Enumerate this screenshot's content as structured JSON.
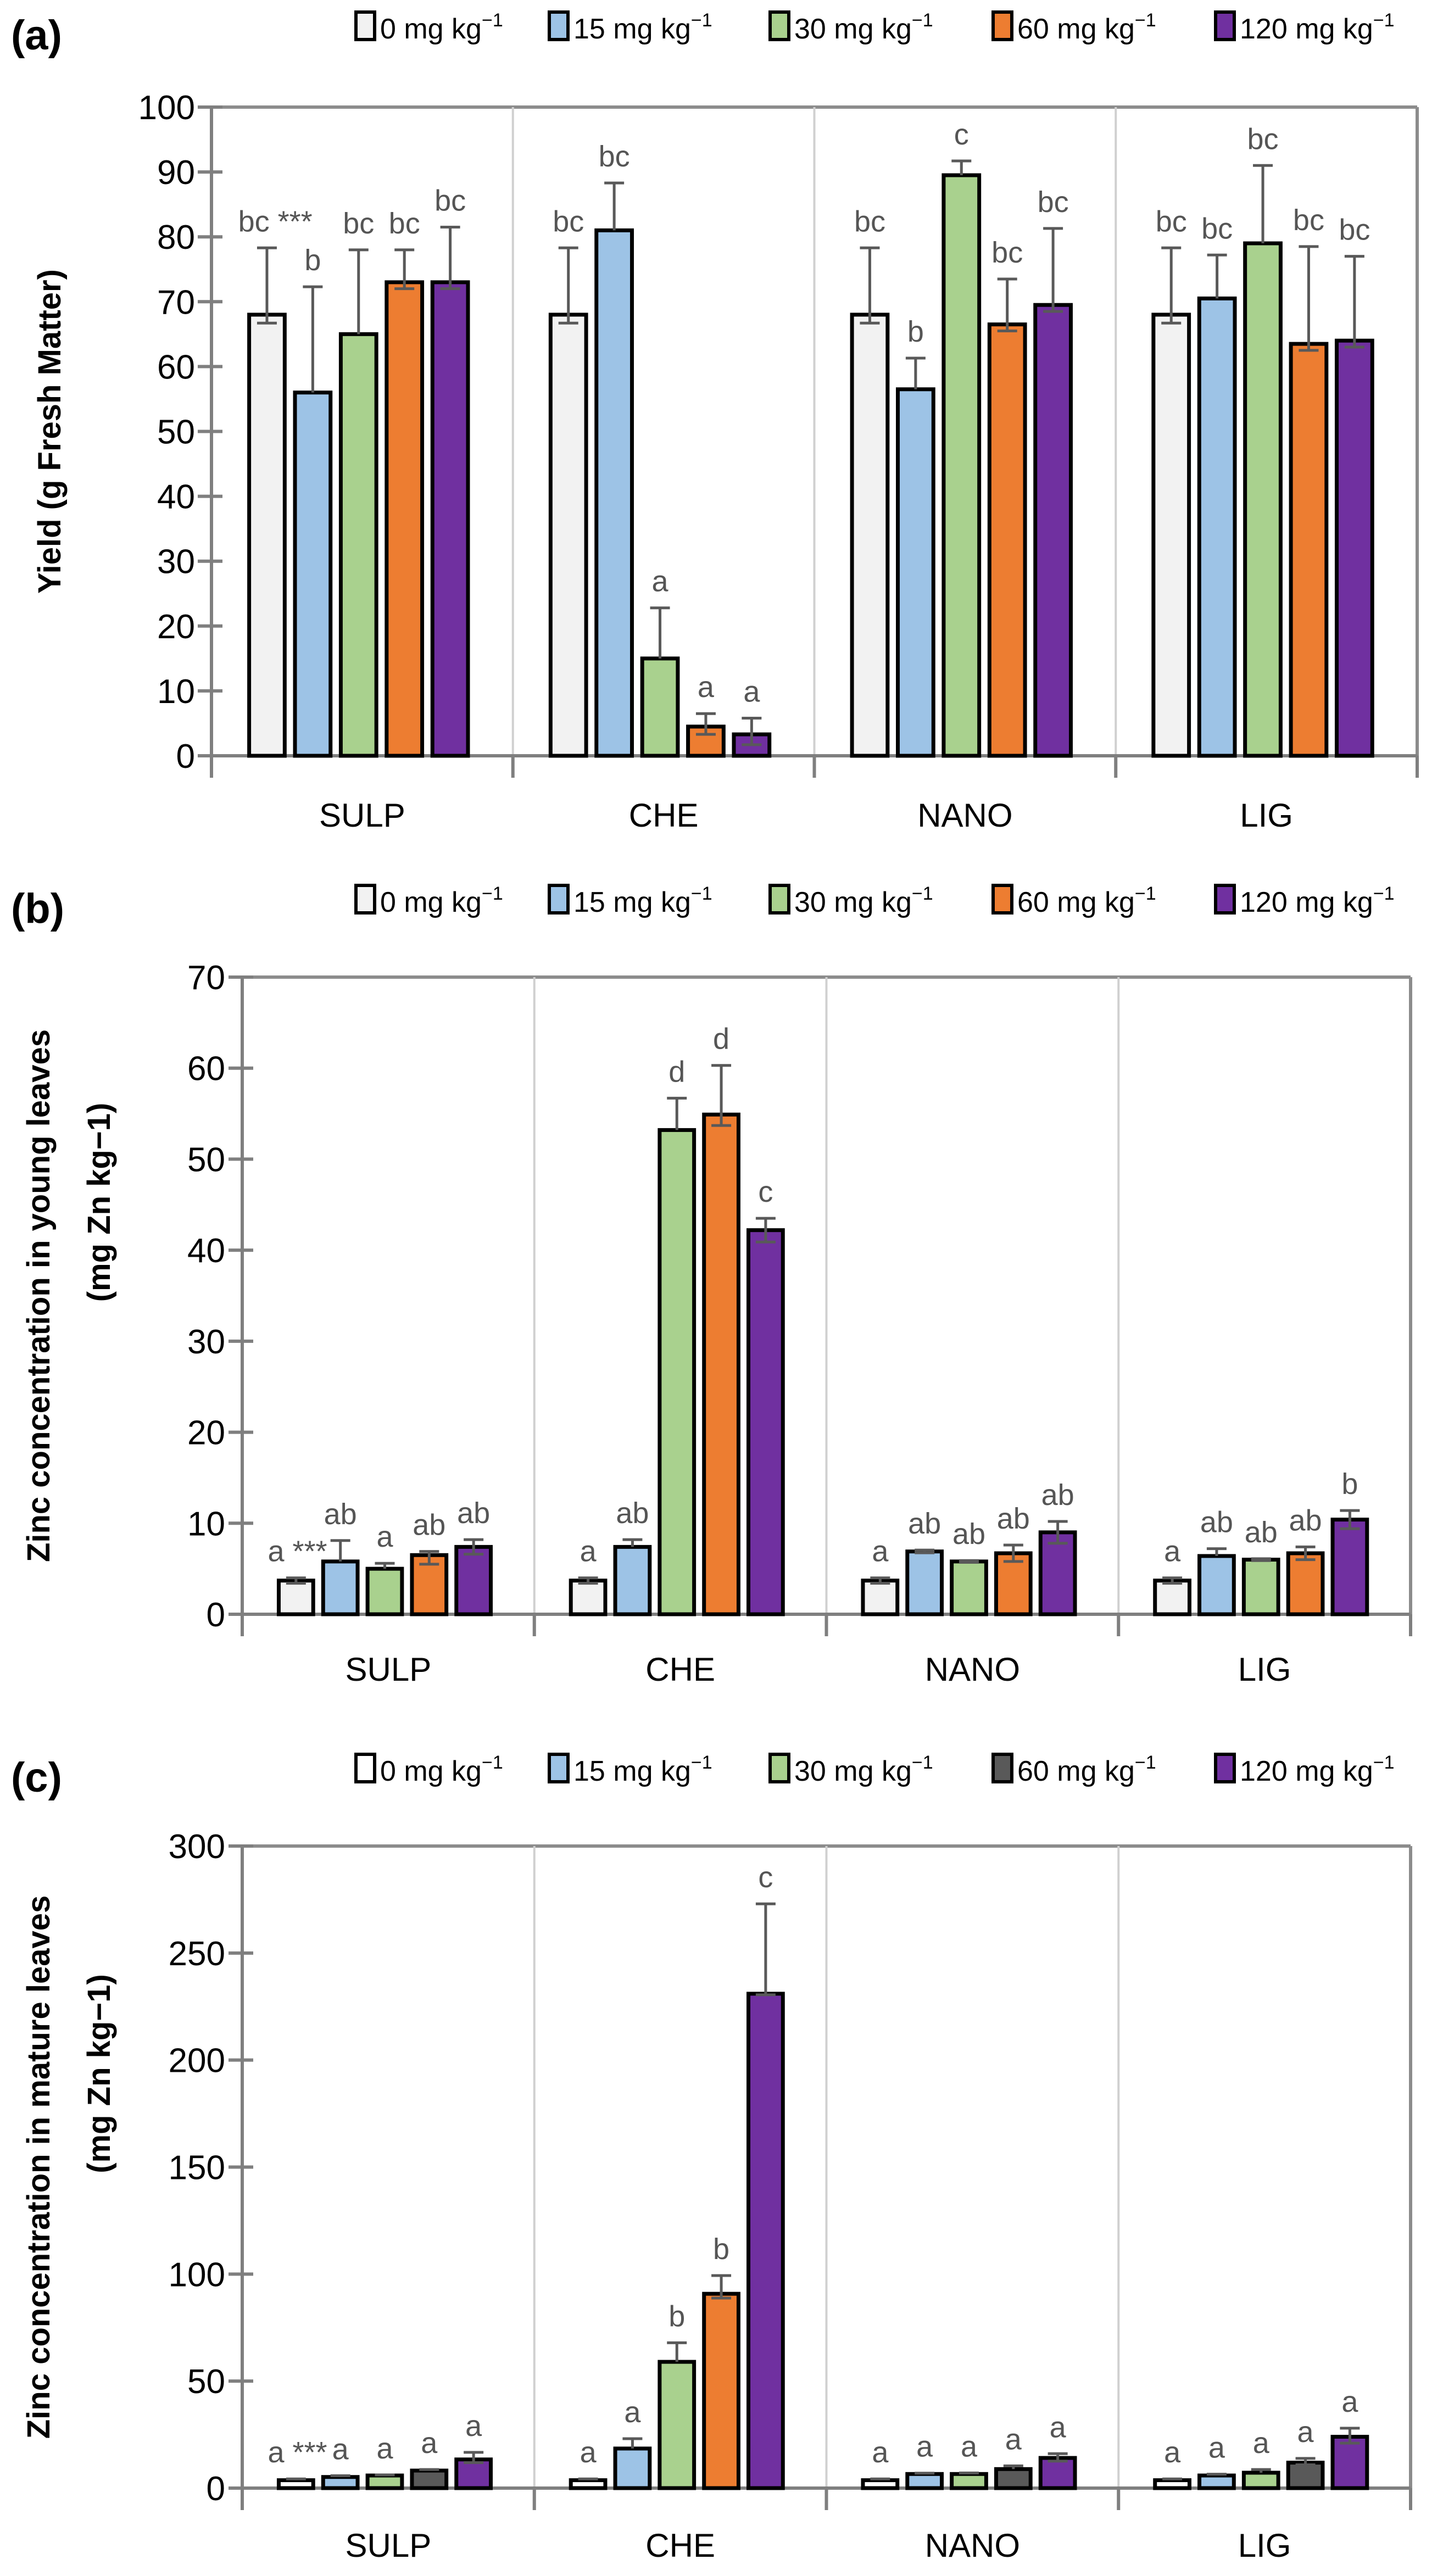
{
  "figure": {
    "legend_unit_text": "mg kg",
    "legend_unit_sup": "−1"
  },
  "chart_data": [
    {
      "type": "bar",
      "panel_label": "(a)",
      "title": "",
      "xlabel": "",
      "ylabel": "Yield (g Fresh Matter)",
      "ylabel_line2": "",
      "ylim": [
        0,
        100
      ],
      "yticks": [
        0,
        10,
        20,
        30,
        40,
        50,
        60,
        70,
        80,
        90,
        100
      ],
      "grid": false,
      "legend_position": "top-right",
      "categories": [
        "SULP",
        "CHE",
        "NANO",
        "LIG"
      ],
      "series": [
        {
          "name": "0 mg kg−1",
          "dose": "0",
          "color": "#f2f2f2",
          "values": [
            68,
            68,
            68,
            68
          ],
          "err_up": [
            10.3,
            10.3,
            10.3,
            10.3
          ],
          "err_down": [
            1.3,
            1.3,
            1.3,
            1.3
          ],
          "letters": [
            "bc ***",
            "bc",
            "bc",
            "bc"
          ]
        },
        {
          "name": "15 mg kg−1",
          "dose": "15",
          "color": "#9dc3e6",
          "values": [
            56,
            81,
            56.5,
            70.5
          ],
          "err_up": [
            16.3,
            7.3,
            4.8,
            6.7
          ],
          "err_down": [
            0,
            0,
            0,
            0
          ],
          "letters": [
            "b",
            "bc",
            "b",
            "bc"
          ]
        },
        {
          "name": "30 mg kg−1",
          "dose": "30",
          "color": "#a9d18e",
          "values": [
            65,
            15,
            89.5,
            79
          ],
          "err_up": [
            13,
            7.8,
            2.2,
            12
          ],
          "err_down": [
            0,
            0,
            0,
            0
          ],
          "letters": [
            "bc",
            "a",
            "c",
            "bc"
          ]
        },
        {
          "name": "60 mg kg−1",
          "dose": "60",
          "color": "#ed7d31",
          "values": [
            73,
            4.5,
            66.5,
            63.5
          ],
          "err_up": [
            5,
            2,
            7,
            15
          ],
          "err_down": [
            1,
            1.2,
            1,
            1
          ],
          "letters": [
            "bc",
            "a",
            "bc",
            "bc"
          ]
        },
        {
          "name": "120 mg kg−1",
          "dose": "120",
          "color": "#7030a0",
          "values": [
            73,
            3.3,
            69.5,
            64
          ],
          "err_up": [
            8.5,
            2.5,
            11.8,
            13
          ],
          "err_down": [
            1,
            1.6,
            1,
            1
          ],
          "letters": [
            "bc",
            "a",
            "bc",
            "bc"
          ]
        }
      ],
      "bar_color_overrides": []
    },
    {
      "type": "bar",
      "panel_label": "(b)",
      "title": "",
      "xlabel": "",
      "ylabel": "Zinc concentration in young leaves",
      "ylabel_line2": "(mg Zn kg−1)",
      "ylim": [
        0,
        70
      ],
      "yticks": [
        0,
        10,
        20,
        30,
        40,
        50,
        60,
        70
      ],
      "grid": false,
      "legend_position": "top-right",
      "categories": [
        "SULP",
        "CHE",
        "NANO",
        "LIG"
      ],
      "series": [
        {
          "name": "0 mg kg−1",
          "dose": "0",
          "color": "#f2f2f2",
          "values": [
            3.7,
            3.7,
            3.7,
            3.7
          ],
          "err_up": [
            0.3,
            0.3,
            0.3,
            0.3
          ],
          "err_down": [
            0.3,
            0.3,
            0.3,
            0.3
          ],
          "letters": [
            "a ***",
            "a",
            "a",
            "a"
          ]
        },
        {
          "name": "15 mg kg−1",
          "dose": "15",
          "color": "#9dc3e6",
          "values": [
            5.8,
            7.4,
            6.9,
            6.4
          ],
          "err_up": [
            2.3,
            0.8,
            0.15,
            0.8
          ],
          "err_down": [
            0,
            0,
            0.15,
            0
          ],
          "letters": [
            "ab",
            "ab",
            "ab",
            "ab"
          ]
        },
        {
          "name": "30 mg kg−1",
          "dose": "30",
          "color": "#a9d18e",
          "values": [
            5.0,
            53.2,
            5.8,
            6.0
          ],
          "err_up": [
            0.6,
            3.5,
            0.1,
            0.1
          ],
          "err_down": [
            0,
            0,
            0.1,
            0.1
          ],
          "letters": [
            "a",
            "d",
            "ab",
            "ab"
          ]
        },
        {
          "name": "60 mg kg−1",
          "dose": "60",
          "color": "#ed7d31",
          "values": [
            6.5,
            54.9,
            6.7,
            6.7
          ],
          "err_up": [
            0.4,
            5.4,
            0.9,
            0.7
          ],
          "err_down": [
            1.0,
            1.2,
            0.9,
            0.7
          ],
          "letters": [
            "ab",
            "d",
            "ab",
            "ab"
          ]
        },
        {
          "name": "120 mg kg−1",
          "dose": "120",
          "color": "#7030a0",
          "values": [
            7.4,
            42.2,
            9.0,
            10.4
          ],
          "err_up": [
            0.8,
            1.3,
            1.2,
            1.0
          ],
          "err_down": [
            0.8,
            1.3,
            1.2,
            1.0
          ],
          "letters": [
            "ab",
            "c",
            "ab",
            "b"
          ]
        }
      ],
      "bar_color_overrides": []
    },
    {
      "type": "bar",
      "panel_label": "(c)",
      "title": "",
      "xlabel": "",
      "ylabel": "Zinc concentration in mature leaves",
      "ylabel_line2": "(mg Zn kg−1)",
      "ylim": [
        0,
        300
      ],
      "yticks": [
        0,
        50,
        100,
        150,
        200,
        250,
        300
      ],
      "grid": false,
      "legend_position": "top-right",
      "categories": [
        "SULP",
        "CHE",
        "NANO",
        "LIG"
      ],
      "series": [
        {
          "name": "0 mg kg−1",
          "dose": "0",
          "color": "#ffffff",
          "values": [
            3.7,
            3.7,
            3.7,
            3.7
          ],
          "err_up": [
            0.6,
            0.6,
            0.6,
            0.6
          ],
          "err_down": [
            0,
            0,
            0,
            0
          ],
          "letters": [
            "a ***",
            "a",
            "a",
            "a"
          ]
        },
        {
          "name": "15 mg kg−1",
          "dose": "15",
          "color": "#9dc3e6",
          "values": [
            5.2,
            18.5,
            6.6,
            5.9
          ],
          "err_up": [
            0.6,
            4.6,
            0.4,
            0.6
          ],
          "err_down": [
            0,
            0,
            0,
            0
          ],
          "letters": [
            "a",
            "a",
            "a",
            "a"
          ]
        },
        {
          "name": "30 mg kg−1",
          "dose": "30",
          "color": "#a9d18e",
          "values": [
            5.9,
            59,
            6.6,
            7.2
          ],
          "err_up": [
            0.3,
            8.9,
            0.5,
            1.5
          ],
          "err_down": [
            0,
            0,
            0,
            0
          ],
          "letters": [
            "a",
            "b",
            "a",
            "a"
          ]
        },
        {
          "name": "60 mg kg−1",
          "dose": "60",
          "color": "#595959",
          "values": [
            8.2,
            90.8,
            8.9,
            11.9
          ],
          "err_up": [
            0.5,
            8.5,
            1.5,
            2
          ],
          "err_down": [
            0,
            2,
            0,
            1
          ],
          "letters": [
            "a",
            "b",
            "a",
            "a"
          ]
        },
        {
          "name": "120 mg kg−1",
          "dose": "120",
          "color": "#7030a0",
          "values": [
            13.4,
            231,
            14.1,
            24
          ],
          "err_up": [
            3.3,
            42,
            2,
            4
          ],
          "err_down": [
            1.5,
            0.5,
            1.5,
            3
          ],
          "letters": [
            "a",
            "c",
            "a",
            "a"
          ]
        }
      ],
      "bar_color_overrides": [
        {
          "series": "60 mg kg−1",
          "category": "CHE",
          "color": "#ed7d31"
        }
      ]
    }
  ]
}
